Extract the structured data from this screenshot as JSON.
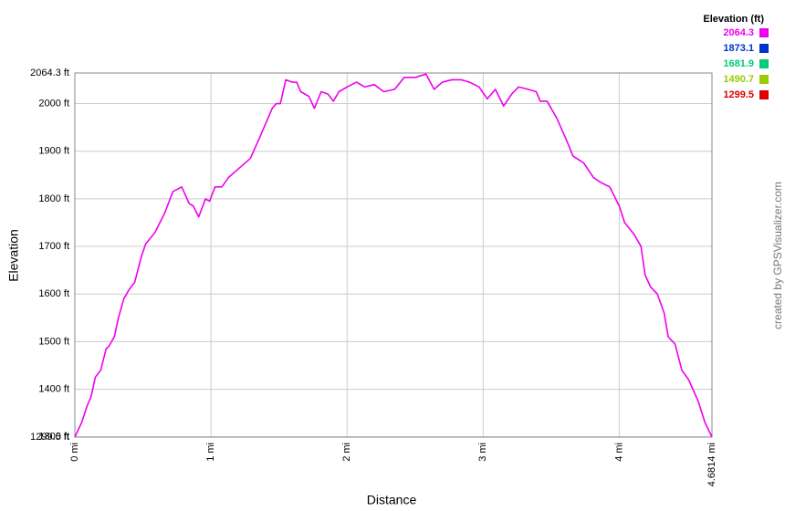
{
  "chart_data": {
    "type": "line",
    "x_label": "Distance",
    "y_label": "Elevation",
    "watermark": "created by GPSVisualizer.com",
    "legend_title": "Elevation (ft)",
    "legend": "upper right",
    "grid": true,
    "color_scale": [
      {
        "value": 2064.3,
        "color": "#ee00ee"
      },
      {
        "value": 1873.1,
        "color": "#0033cc"
      },
      {
        "value": 1681.9,
        "color": "#00cc77"
      },
      {
        "value": 1490.7,
        "color": "#99cc00"
      },
      {
        "value": 1299.5,
        "color": "#dd0000"
      }
    ],
    "xlim": [
      0,
      4.6814
    ],
    "ylim": [
      1299.5,
      2064.3
    ],
    "xticks": [
      {
        "value": 0,
        "label": "0 mi"
      },
      {
        "value": 1,
        "label": "1 mi"
      },
      {
        "value": 2,
        "label": "2 mi"
      },
      {
        "value": 3,
        "label": "3 mi"
      },
      {
        "value": 4,
        "label": "4 mi"
      },
      {
        "value": 4.6814,
        "label": "4.6814 mi"
      }
    ],
    "yticks": [
      {
        "value": 1299.5,
        "label": "1299.5 ft"
      },
      {
        "value": 1300,
        "label": "1300 ft"
      },
      {
        "value": 1400,
        "label": "1400 ft"
      },
      {
        "value": 1500,
        "label": "1500 ft"
      },
      {
        "value": 1600,
        "label": "1600 ft"
      },
      {
        "value": 1700,
        "label": "1700 ft"
      },
      {
        "value": 1800,
        "label": "1800 ft"
      },
      {
        "value": 1900,
        "label": "1900 ft"
      },
      {
        "value": 2000,
        "label": "2000 ft"
      },
      {
        "value": 2064.3,
        "label": "2064.3 ft"
      }
    ],
    "x": [
      0,
      0.05,
      0.09,
      0.12,
      0.15,
      0.19,
      0.23,
      0.25,
      0.29,
      0.32,
      0.36,
      0.4,
      0.44,
      0.49,
      0.52,
      0.59,
      0.66,
      0.72,
      0.785,
      0.84,
      0.87,
      0.91,
      0.96,
      0.99,
      1.03,
      1.08,
      1.13,
      1.19,
      1.29,
      1.36,
      1.45,
      1.48,
      1.51,
      1.55,
      1.6,
      1.63,
      1.66,
      1.72,
      1.76,
      1.81,
      1.86,
      1.9,
      1.94,
      2.0,
      2.07,
      2.13,
      2.2,
      2.27,
      2.35,
      2.42,
      2.5,
      2.58,
      2.64,
      2.7,
      2.77,
      2.84,
      2.9,
      2.97,
      3.03,
      3.09,
      3.15,
      3.21,
      3.26,
      3.33,
      3.39,
      3.42,
      3.47,
      3.54,
      3.61,
      3.66,
      3.74,
      3.81,
      3.86,
      3.93,
      4.0,
      4.04,
      4.11,
      4.16,
      4.19,
      4.23,
      4.28,
      4.33,
      4.36,
      4.41,
      4.46,
      4.51,
      4.58,
      4.63,
      4.6814
    ],
    "series": [
      {
        "name": "Elevation",
        "values": [
          1299.5,
          1330,
          1365,
          1385,
          1425,
          1440,
          1485,
          1490,
          1510,
          1550,
          1590,
          1610,
          1625,
          1680,
          1705,
          1730,
          1770,
          1815,
          1825,
          1790,
          1785,
          1762,
          1800,
          1795,
          1825,
          1825,
          1845,
          1860,
          1885,
          1930,
          1990,
          2000,
          2000,
          2050,
          2045,
          2045,
          2025,
          2015,
          1990,
          2025,
          2020,
          2005,
          2025,
          2035,
          2045,
          2035,
          2040,
          2025,
          2030,
          2055,
          2055,
          2062,
          2030,
          2045,
          2050,
          2050,
          2045,
          2035,
          2010,
          2030,
          1995,
          2020,
          2035,
          2030,
          2025,
          2005,
          2005,
          1970,
          1925,
          1890,
          1875,
          1845,
          1835,
          1825,
          1785,
          1750,
          1725,
          1700,
          1640,
          1615,
          1600,
          1560,
          1510,
          1495,
          1440,
          1420,
          1375,
          1330,
          1299.5
        ]
      }
    ]
  }
}
